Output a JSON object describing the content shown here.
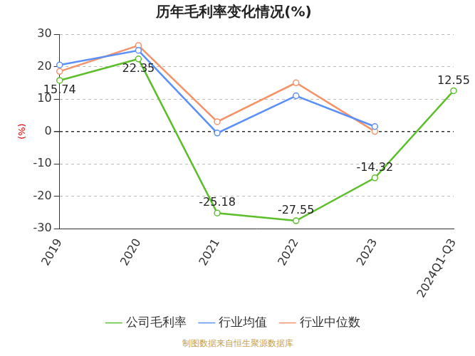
{
  "chart_data": {
    "type": "line",
    "title": "历年毛利率变化情况(%)",
    "ylabel": "(%)",
    "categories": [
      "2019",
      "2020",
      "2021",
      "2022",
      "2023",
      "2024Q1-Q3"
    ],
    "series": [
      {
        "name": "公司毛利率",
        "color": "#5cbf2a",
        "marker": "circle",
        "data_labels": true,
        "values": [
          15.74,
          22.35,
          -25.18,
          -27.55,
          -14.32,
          12.55
        ]
      },
      {
        "name": "行业均值",
        "color": "#5b8ff9",
        "marker": "circle",
        "values": [
          20.5,
          25,
          -0.5,
          11,
          1.5,
          null
        ]
      },
      {
        "name": "行业中位数",
        "color": "#f4926a",
        "marker": "circle",
        "values": [
          18.5,
          26.5,
          3,
          15,
          0,
          null
        ]
      }
    ],
    "ylim": [
      -30,
      30
    ],
    "yticks": [
      -30,
      -20,
      -10,
      0,
      10,
      20,
      30
    ],
    "grid": true,
    "legend": "bottom",
    "annotations": [
      "制图数据来自恒生聚源数据库"
    ]
  }
}
